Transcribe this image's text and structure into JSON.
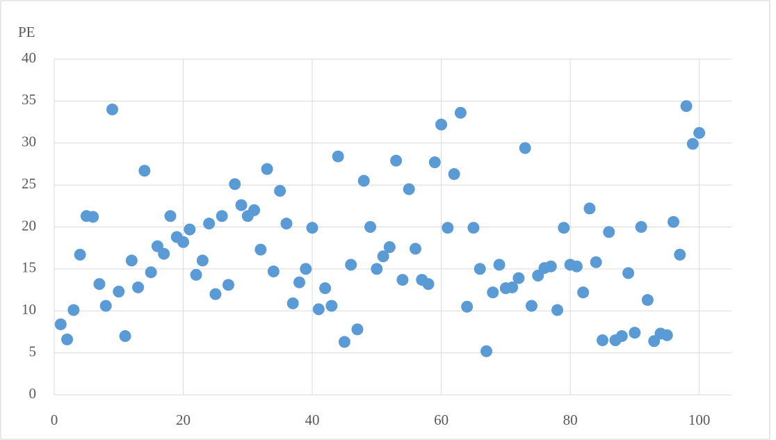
{
  "chart_data": {
    "type": "scatter",
    "y_label": "PE",
    "x": [
      1,
      2,
      3,
      4,
      5,
      6,
      7,
      8,
      9,
      10,
      11,
      12,
      13,
      14,
      15,
      16,
      17,
      18,
      19,
      20,
      21,
      22,
      23,
      24,
      25,
      26,
      27,
      28,
      29,
      30,
      31,
      32,
      33,
      34,
      35,
      36,
      37,
      38,
      39,
      40,
      41,
      42,
      43,
      44,
      45,
      46,
      47,
      48,
      49,
      50,
      51,
      52,
      53,
      54,
      55,
      56,
      57,
      58,
      59,
      60,
      61,
      62,
      63,
      64,
      65,
      66,
      67,
      68,
      69,
      70,
      71,
      72,
      73,
      74,
      75,
      76,
      77,
      78,
      79,
      80,
      81,
      82,
      83,
      84,
      85,
      86,
      87,
      88,
      89,
      90,
      91,
      92,
      93,
      94,
      95,
      96,
      97,
      98,
      99,
      100
    ],
    "values": [
      8.4,
      6.6,
      10.1,
      16.7,
      21.3,
      21.2,
      13.2,
      10.6,
      34.0,
      12.3,
      7.0,
      16.0,
      12.8,
      26.7,
      14.6,
      17.7,
      16.8,
      21.3,
      18.8,
      18.2,
      19.7,
      14.3,
      16.0,
      20.4,
      12.0,
      21.3,
      13.1,
      25.1,
      22.6,
      21.3,
      22.0,
      17.3,
      26.9,
      14.7,
      24.3,
      20.4,
      10.9,
      13.4,
      15.0,
      19.9,
      10.2,
      12.7,
      10.6,
      28.4,
      6.3,
      15.5,
      7.8,
      25.5,
      20.0,
      15.0,
      16.5,
      17.6,
      27.9,
      13.7,
      24.5,
      17.4,
      13.7,
      13.2,
      27.7,
      32.2,
      19.9,
      26.3,
      33.6,
      10.5,
      19.9,
      15.0,
      5.2,
      12.2,
      15.5,
      12.7,
      12.8,
      13.9,
      29.4,
      10.6,
      14.2,
      15.1,
      15.3,
      10.1,
      19.9,
      15.5,
      15.3,
      12.2,
      22.2,
      15.8,
      6.5,
      19.4,
      6.5,
      7.0,
      14.5,
      7.4,
      20.0,
      11.3,
      6.4,
      7.3,
      7.1,
      20.6,
      16.7,
      34.4,
      29.9,
      31.2
    ],
    "color": "#5b9bd5",
    "xlim": [
      0,
      105
    ],
    "xticks": [
      0,
      20,
      40,
      60,
      80,
      100
    ],
    "ylim": [
      0,
      40
    ],
    "yticks": [
      0,
      5,
      10,
      15,
      20,
      25,
      30,
      35,
      40
    ],
    "grid": true
  }
}
